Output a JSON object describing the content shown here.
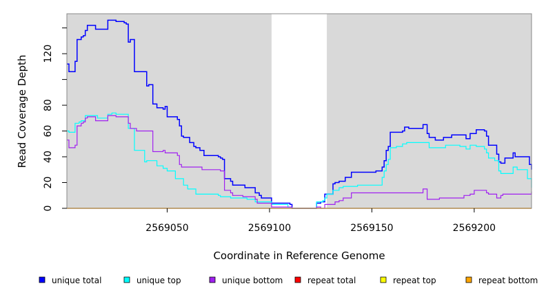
{
  "chart_data": {
    "type": "line",
    "xlabel": "Coordinate in Reference Genome",
    "ylabel": "Read Coverage Depth",
    "xlim": [
      2569001,
      2569228
    ],
    "ylim": [
      0,
      151
    ],
    "x_ticks": [
      2569050,
      2569100,
      2569150,
      2569200
    ],
    "x_tick_labels": [
      "2569050",
      "2569100",
      "2569150",
      "2569200"
    ],
    "y_ticks": [
      0,
      20,
      40,
      60,
      80,
      100,
      120,
      140
    ],
    "y_tick_labels": [
      "0",
      "20",
      "40",
      "60",
      "80",
      "",
      "120",
      ""
    ],
    "background": "#d9d9d9",
    "unshaded_regions": [
      [
        2569101,
        2569128
      ]
    ],
    "legend_position": "bottom",
    "series": [
      {
        "name": "unique total",
        "color": "#0000ff",
        "points": [
          [
            2569001,
            112
          ],
          [
            2569002,
            106
          ],
          [
            2569005,
            114
          ],
          [
            2569006,
            131
          ],
          [
            2569008,
            133
          ],
          [
            2569009,
            134
          ],
          [
            2569010,
            138
          ],
          [
            2569011,
            142
          ],
          [
            2569015,
            139
          ],
          [
            2569021,
            146
          ],
          [
            2569025,
            145
          ],
          [
            2569029,
            144
          ],
          [
            2569030,
            143
          ],
          [
            2569031,
            129
          ],
          [
            2569032,
            131
          ],
          [
            2569034,
            106
          ],
          [
            2569040,
            95
          ],
          [
            2569041,
            96
          ],
          [
            2569043,
            81
          ],
          [
            2569045,
            78
          ],
          [
            2569048,
            77
          ],
          [
            2569049,
            79
          ],
          [
            2569050,
            71
          ],
          [
            2569055,
            69
          ],
          [
            2569056,
            64
          ],
          [
            2569057,
            56
          ],
          [
            2569058,
            55
          ],
          [
            2569061,
            51
          ],
          [
            2569063,
            48
          ],
          [
            2569064,
            47
          ],
          [
            2569066,
            45
          ],
          [
            2569068,
            41
          ],
          [
            2569075,
            40
          ],
          [
            2569076,
            39
          ],
          [
            2569077,
            38
          ],
          [
            2569078,
            23
          ],
          [
            2569081,
            21
          ],
          [
            2569082,
            18
          ],
          [
            2569088,
            16
          ],
          [
            2569093,
            12
          ],
          [
            2569095,
            10
          ],
          [
            2569096,
            8
          ],
          [
            2569101,
            4
          ],
          [
            2569110,
            3
          ],
          [
            2569111,
            0
          ],
          [
            2569123,
            4
          ],
          [
            2569125,
            5
          ],
          [
            2569127,
            11
          ],
          [
            2569131,
            19
          ],
          [
            2569132,
            20
          ],
          [
            2569134,
            21
          ],
          [
            2569137,
            24
          ],
          [
            2569140,
            28
          ],
          [
            2569152,
            29
          ],
          [
            2569155,
            32
          ],
          [
            2569156,
            37
          ],
          [
            2569157,
            45
          ],
          [
            2569158,
            48
          ],
          [
            2569159,
            59
          ],
          [
            2569165,
            60
          ],
          [
            2569166,
            63
          ],
          [
            2569168,
            62
          ],
          [
            2569175,
            65
          ],
          [
            2569177,
            58
          ],
          [
            2569178,
            55
          ],
          [
            2569181,
            53
          ],
          [
            2569185,
            55
          ],
          [
            2569189,
            57
          ],
          [
            2569196,
            54
          ],
          [
            2569198,
            58
          ],
          [
            2569201,
            61
          ],
          [
            2569205,
            60
          ],
          [
            2569206,
            56
          ],
          [
            2569207,
            49
          ],
          [
            2569211,
            42
          ],
          [
            2569212,
            36
          ],
          [
            2569213,
            35
          ],
          [
            2569215,
            39
          ],
          [
            2569219,
            43
          ],
          [
            2569220,
            40
          ],
          [
            2569227,
            34
          ],
          [
            2569229,
            30
          ]
        ]
      },
      {
        "name": "unique top",
        "color": "#00ffff",
        "points": [
          [
            2569001,
            60
          ],
          [
            2569002,
            59
          ],
          [
            2569005,
            66
          ],
          [
            2569007,
            67
          ],
          [
            2569008,
            68
          ],
          [
            2569010,
            72
          ],
          [
            2569016,
            70
          ],
          [
            2569021,
            73
          ],
          [
            2569023,
            74
          ],
          [
            2569025,
            73
          ],
          [
            2569031,
            62
          ],
          [
            2569034,
            45
          ],
          [
            2569039,
            36
          ],
          [
            2569040,
            37
          ],
          [
            2569045,
            33
          ],
          [
            2569048,
            31
          ],
          [
            2569050,
            29
          ],
          [
            2569054,
            23
          ],
          [
            2569058,
            18
          ],
          [
            2569060,
            15
          ],
          [
            2569064,
            11
          ],
          [
            2569075,
            10
          ],
          [
            2569076,
            9
          ],
          [
            2569081,
            8
          ],
          [
            2569089,
            7
          ],
          [
            2569093,
            5
          ],
          [
            2569101,
            3
          ],
          [
            2569109,
            1
          ],
          [
            2569111,
            0
          ],
          [
            2569123,
            5
          ],
          [
            2569126,
            6
          ],
          [
            2569127,
            8
          ],
          [
            2569128,
            11
          ],
          [
            2569131,
            14
          ],
          [
            2569134,
            16
          ],
          [
            2569136,
            17
          ],
          [
            2569143,
            18
          ],
          [
            2569155,
            24
          ],
          [
            2569156,
            29
          ],
          [
            2569157,
            34
          ],
          [
            2569158,
            38
          ],
          [
            2569159,
            47
          ],
          [
            2569162,
            48
          ],
          [
            2569165,
            50
          ],
          [
            2569167,
            51
          ],
          [
            2569178,
            47
          ],
          [
            2569186,
            49
          ],
          [
            2569193,
            48
          ],
          [
            2569196,
            46
          ],
          [
            2569198,
            49
          ],
          [
            2569201,
            48
          ],
          [
            2569205,
            46
          ],
          [
            2569206,
            43
          ],
          [
            2569207,
            39
          ],
          [
            2569210,
            37
          ],
          [
            2569212,
            29
          ],
          [
            2569213,
            27
          ],
          [
            2569219,
            32
          ],
          [
            2569221,
            30
          ],
          [
            2569226,
            23
          ],
          [
            2569229,
            16
          ]
        ]
      },
      {
        "name": "unique bottom",
        "color": "#a020f0",
        "points": [
          [
            2569001,
            53
          ],
          [
            2569002,
            47
          ],
          [
            2569005,
            49
          ],
          [
            2569006,
            64
          ],
          [
            2569008,
            66
          ],
          [
            2569009,
            67
          ],
          [
            2569010,
            70
          ],
          [
            2569011,
            71
          ],
          [
            2569015,
            68
          ],
          [
            2569021,
            72
          ],
          [
            2569025,
            71
          ],
          [
            2569031,
            66
          ],
          [
            2569032,
            62
          ],
          [
            2569035,
            60
          ],
          [
            2569043,
            44
          ],
          [
            2569048,
            45
          ],
          [
            2569049,
            43
          ],
          [
            2569055,
            41
          ],
          [
            2569056,
            34
          ],
          [
            2569057,
            32
          ],
          [
            2569067,
            30
          ],
          [
            2569076,
            29
          ],
          [
            2569078,
            14
          ],
          [
            2569081,
            12
          ],
          [
            2569082,
            10
          ],
          [
            2569087,
            9
          ],
          [
            2569093,
            7
          ],
          [
            2569094,
            4
          ],
          [
            2569101,
            1
          ],
          [
            2569111,
            0
          ],
          [
            2569123,
            1
          ],
          [
            2569125,
            0
          ],
          [
            2569127,
            3
          ],
          [
            2569132,
            5
          ],
          [
            2569134,
            6
          ],
          [
            2569136,
            8
          ],
          [
            2569140,
            12
          ],
          [
            2569175,
            15
          ],
          [
            2569177,
            7
          ],
          [
            2569183,
            8
          ],
          [
            2569195,
            10
          ],
          [
            2569198,
            11
          ],
          [
            2569200,
            14
          ],
          [
            2569206,
            12
          ],
          [
            2569207,
            11
          ],
          [
            2569211,
            8
          ],
          [
            2569213,
            10
          ],
          [
            2569214,
            11
          ],
          [
            2569229,
            13
          ]
        ]
      },
      {
        "name": "repeat total",
        "color": "#ff0000",
        "points": [
          [
            2569001,
            0
          ],
          [
            2569229,
            0
          ]
        ]
      },
      {
        "name": "repeat top",
        "color": "#ffff00",
        "points": [
          [
            2569001,
            0
          ],
          [
            2569229,
            0
          ]
        ]
      },
      {
        "name": "repeat bottom",
        "color": "#ffa500",
        "points": [
          [
            2569001,
            0
          ],
          [
            2569229,
            0
          ]
        ]
      }
    ]
  }
}
